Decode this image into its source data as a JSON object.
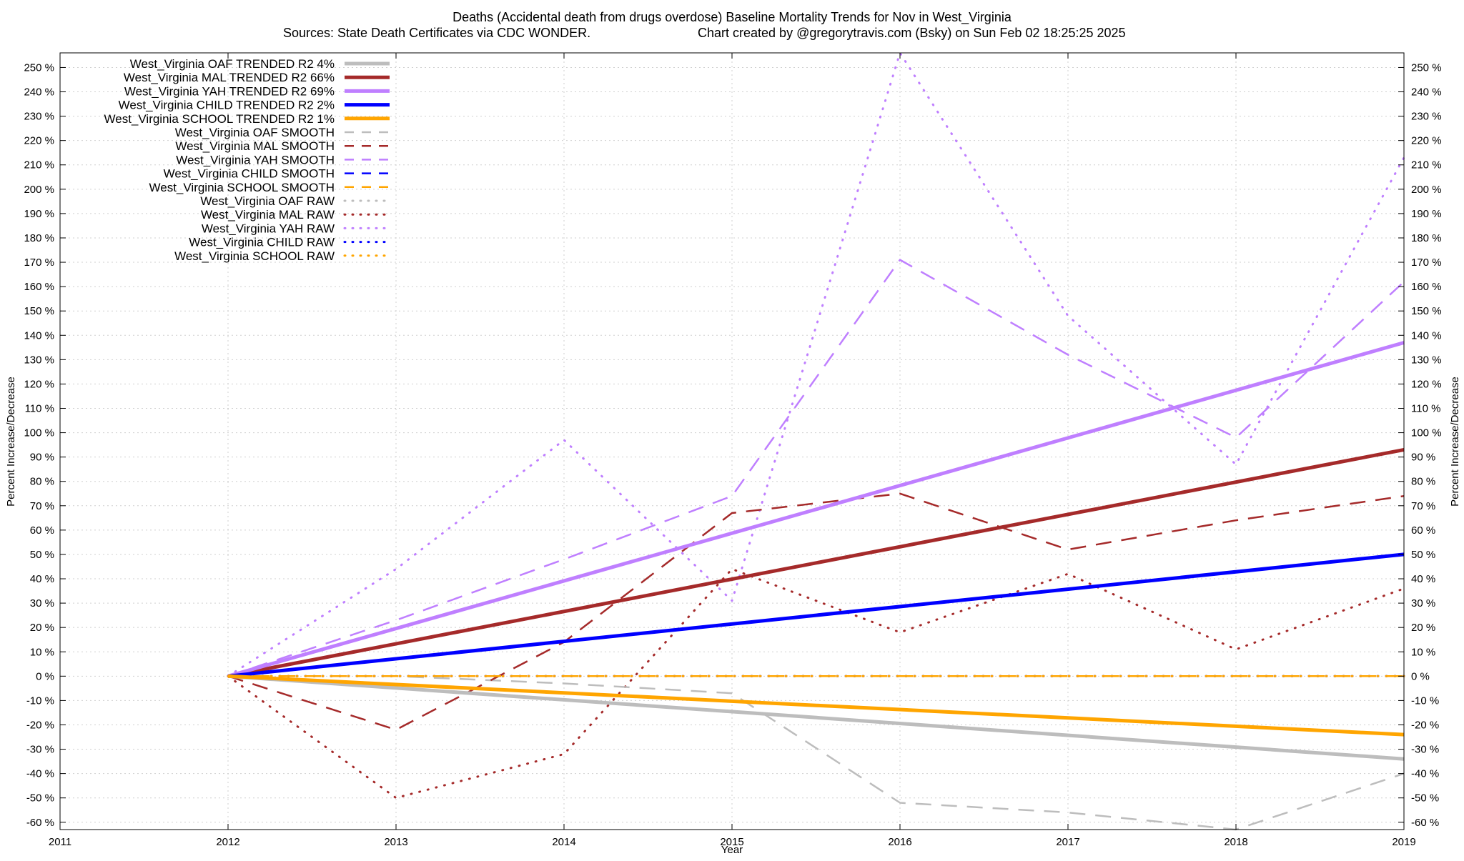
{
  "chart_data": {
    "type": "line",
    "title_line1": "Deaths (Accidental death from drugs overdose)  Baseline Mortality Trends for Nov in West_Virginia",
    "title_line2_left": "Sources: State Death Certificates via CDC WONDER.",
    "title_line2_right": "Chart created by @gregorytravis.com (Bsky) on Sun Feb 02 18:25:25 2025",
    "xlabel": "Year",
    "ylabel_left": "Percent Increase/Decrease",
    "ylabel_right": "Percent Increase/Decrease",
    "xlim": [
      2011,
      2019
    ],
    "ylim": [
      -63,
      256
    ],
    "x_ticks": [
      "2011",
      "2012",
      "2013",
      "2014",
      "2015",
      "2016",
      "2017",
      "2018",
      "2019"
    ],
    "y_ticks_left": [
      "-60 %",
      "-50 %",
      "-40 %",
      "-30 %",
      "-20 %",
      "-10 %",
      "0 %",
      "10 %",
      "20 %",
      "30 %",
      "40 %",
      "50 %",
      "60 %",
      "70 %",
      "80 %",
      "90 %",
      "100 %",
      "110 %",
      "120 %",
      "130 %",
      "140 %",
      "150 %",
      "160 %",
      "170 %",
      "180 %",
      "190 %",
      "200 %",
      "210 %",
      "220 %",
      "230 %",
      "240 %",
      "250 %"
    ],
    "y_ticks_right": [
      "-60 %",
      "-50 %",
      "-40 %",
      "-30 %",
      "-20 %",
      "-10 %",
      "0 %",
      "10 %",
      "20 %",
      "30 %",
      "40 %",
      "50 %",
      "60 %",
      "70 %",
      "80 %",
      "90 %",
      "100 %",
      "110 %",
      "120 %",
      "130 %",
      "140 %",
      "150 %",
      "160 %",
      "170 %",
      "180 %",
      "190 %",
      "200 %",
      "210 %",
      "220 %",
      "230 %",
      "240 %",
      "250 %"
    ],
    "grid": true,
    "legend_position": "top-left",
    "series": [
      {
        "name": "West_Virginia OAF TRENDED R2  4%",
        "style": "solid",
        "color": "#bdbdbd",
        "x": [
          2012,
          2019
        ],
        "y": [
          0,
          -34
        ]
      },
      {
        "name": "West_Virginia MAL TRENDED R2  66%",
        "style": "solid",
        "color": "#a52a2a",
        "x": [
          2012,
          2019
        ],
        "y": [
          0,
          93
        ]
      },
      {
        "name": "West_Virginia YAH TRENDED R2  69%",
        "style": "solid",
        "color": "#bf7fff",
        "x": [
          2012,
          2019
        ],
        "y": [
          0,
          137
        ]
      },
      {
        "name": "West_Virginia CHILD TRENDED R2  2%",
        "style": "solid",
        "color": "#0000ff",
        "x": [
          2012,
          2019
        ],
        "y": [
          0,
          50
        ]
      },
      {
        "name": "West_Virginia SCHOOL TRENDED R2  1%",
        "style": "solid",
        "color": "#ffa500",
        "x": [
          2012,
          2019
        ],
        "y": [
          0,
          -24
        ]
      },
      {
        "name": "West_Virginia OAF SMOOTH",
        "style": "dashed",
        "color": "#bdbdbd",
        "x": [
          2012,
          2013,
          2014,
          2015,
          2016,
          2017,
          2018,
          2019
        ],
        "y": [
          0,
          0,
          -3,
          -7,
          -52,
          -56,
          -63,
          -40
        ]
      },
      {
        "name": "West_Virginia MAL SMOOTH",
        "style": "dashed",
        "color": "#a52a2a",
        "x": [
          2012,
          2013,
          2014,
          2015,
          2016,
          2017,
          2018,
          2019
        ],
        "y": [
          0,
          -22,
          14,
          67,
          75,
          52,
          64,
          74
        ]
      },
      {
        "name": "West_Virginia YAH SMOOTH",
        "style": "dashed",
        "color": "#bf7fff",
        "x": [
          2012,
          2013,
          2014,
          2015,
          2016,
          2017,
          2018,
          2019
        ],
        "y": [
          0,
          23,
          48,
          74,
          171,
          132,
          98,
          162
        ]
      },
      {
        "name": "West_Virginia CHILD SMOOTH",
        "style": "dashed",
        "color": "#0000ff",
        "x": [
          2012,
          2013,
          2014,
          2015,
          2016,
          2017,
          2018,
          2019
        ],
        "y": [
          0,
          0,
          0,
          0,
          0,
          0,
          0,
          0
        ]
      },
      {
        "name": "West_Virginia SCHOOL SMOOTH",
        "style": "dashed",
        "color": "#ffa500",
        "x": [
          2012,
          2013,
          2014,
          2015,
          2016,
          2017,
          2018,
          2019
        ],
        "y": [
          0,
          0,
          0,
          0,
          0,
          0,
          0,
          0
        ]
      },
      {
        "name": "West_Virginia OAF RAW",
        "style": "dotted",
        "color": "#bdbdbd",
        "x": [
          2012,
          2013,
          2014,
          2015,
          2016,
          2017,
          2018,
          2019
        ],
        "y": [
          0,
          0,
          0,
          0,
          0,
          0,
          0,
          0
        ]
      },
      {
        "name": "West_Virginia MAL RAW",
        "style": "dotted",
        "color": "#a52a2a",
        "x": [
          2012,
          2013,
          2014,
          2015,
          2016,
          2017,
          2018,
          2019
        ],
        "y": [
          0,
          -50,
          -32,
          44,
          18,
          42,
          11,
          36
        ]
      },
      {
        "name": "West_Virginia YAH RAW",
        "style": "dotted",
        "color": "#bf7fff",
        "x": [
          2012,
          2013,
          2014,
          2015,
          2016,
          2017,
          2018,
          2019
        ],
        "y": [
          0,
          44,
          97,
          31,
          256,
          148,
          87,
          213
        ]
      },
      {
        "name": "West_Virginia CHILD RAW",
        "style": "dotted",
        "color": "#0000ff",
        "x": [
          2012,
          2013,
          2014,
          2015,
          2016,
          2017,
          2018,
          2019
        ],
        "y": [
          0,
          0,
          0,
          0,
          0,
          0,
          0,
          0
        ]
      },
      {
        "name": "West_Virginia SCHOOL RAW",
        "style": "dotted",
        "color": "#ffa500",
        "x": [
          2012,
          2013,
          2014,
          2015,
          2016,
          2017,
          2018,
          2019
        ],
        "y": [
          0,
          0,
          0,
          0,
          0,
          0,
          0,
          0
        ]
      }
    ]
  }
}
